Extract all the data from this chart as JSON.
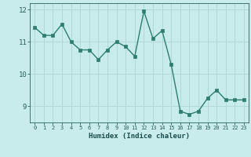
{
  "x": [
    0,
    1,
    2,
    3,
    4,
    5,
    6,
    7,
    8,
    9,
    10,
    11,
    12,
    13,
    14,
    15,
    16,
    17,
    18,
    19,
    20,
    21,
    22,
    23
  ],
  "y": [
    11.45,
    11.2,
    11.2,
    11.55,
    11.0,
    10.75,
    10.75,
    10.45,
    10.75,
    11.0,
    10.85,
    10.55,
    11.95,
    11.1,
    11.35,
    10.3,
    8.85,
    8.75,
    8.85,
    9.25,
    9.5,
    9.2,
    9.2,
    9.2
  ],
  "xlabel": "Humidex (Indice chaleur)",
  "ylim": [
    8.5,
    12.2
  ],
  "xlim": [
    -0.5,
    23.5
  ],
  "yticks": [
    9,
    10,
    11,
    12
  ],
  "xticks": [
    0,
    1,
    2,
    3,
    4,
    5,
    6,
    7,
    8,
    9,
    10,
    11,
    12,
    13,
    14,
    15,
    16,
    17,
    18,
    19,
    20,
    21,
    22,
    23
  ],
  "line_color": "#2e7d6e",
  "marker_color": "#2e7d6e",
  "bg_color": "#c8ecec",
  "grid_color": "#b0d8d8",
  "tick_label_color": "#2e5d5d",
  "xlabel_color": "#1a4a4a",
  "font_family": "monospace"
}
